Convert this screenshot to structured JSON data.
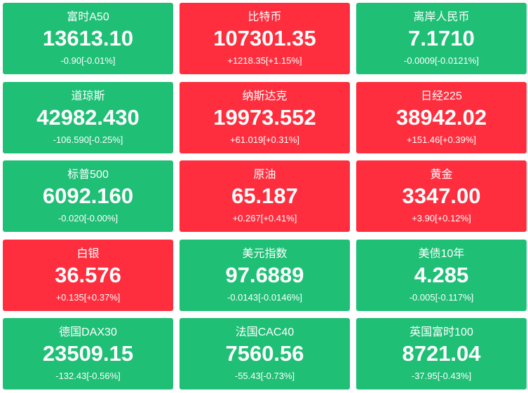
{
  "tiles": [
    {
      "name": "富时A50",
      "value": "13613.10",
      "change": "-0.90[-0.01%]",
      "color": "#1fbf76"
    },
    {
      "name": "比特币",
      "value": "107301.35",
      "change": "+1218.35[+1.15%]",
      "color": "#fe2e3e"
    },
    {
      "name": "离岸人民币",
      "value": "7.1710",
      "change": "-0.0009[-0.0121%]",
      "color": "#1fbf76"
    },
    {
      "name": "道琼斯",
      "value": "42982.430",
      "change": "-106.590[-0.25%]",
      "color": "#1fbf76"
    },
    {
      "name": "纳斯达克",
      "value": "19973.552",
      "change": "+61.019[+0.31%]",
      "color": "#fe2e3e"
    },
    {
      "name": "日经225",
      "value": "38942.02",
      "change": "+151.46[+0.39%]",
      "color": "#fe2e3e"
    },
    {
      "name": "标普500",
      "value": "6092.160",
      "change": "-0.020[-0.00%]",
      "color": "#1fbf76"
    },
    {
      "name": "原油",
      "value": "65.187",
      "change": "+0.267[+0.41%]",
      "color": "#fe2e3e"
    },
    {
      "name": "黄金",
      "value": "3347.00",
      "change": "+3.90[+0.12%]",
      "color": "#fe2e3e"
    },
    {
      "name": "白银",
      "value": "36.576",
      "change": "+0.135[+0.37%]",
      "color": "#fe2e3e"
    },
    {
      "name": "美元指数",
      "value": "97.6889",
      "change": "-0.0143[-0.0146%]",
      "color": "#1fbf76"
    },
    {
      "name": "美债10年",
      "value": "4.285",
      "change": "-0.005[-0.117%]",
      "color": "#1fbf76"
    },
    {
      "name": "德国DAX30",
      "value": "23509.15",
      "change": "-132.43[-0.56%]",
      "color": "#1fbf76"
    },
    {
      "name": "法国CAC40",
      "value": "7560.56",
      "change": "-55.43[-0.73%]",
      "color": "#1fbf76"
    },
    {
      "name": "英国富时100",
      "value": "8721.04",
      "change": "-37.95[-0.43%]",
      "color": "#1fbf76"
    }
  ]
}
